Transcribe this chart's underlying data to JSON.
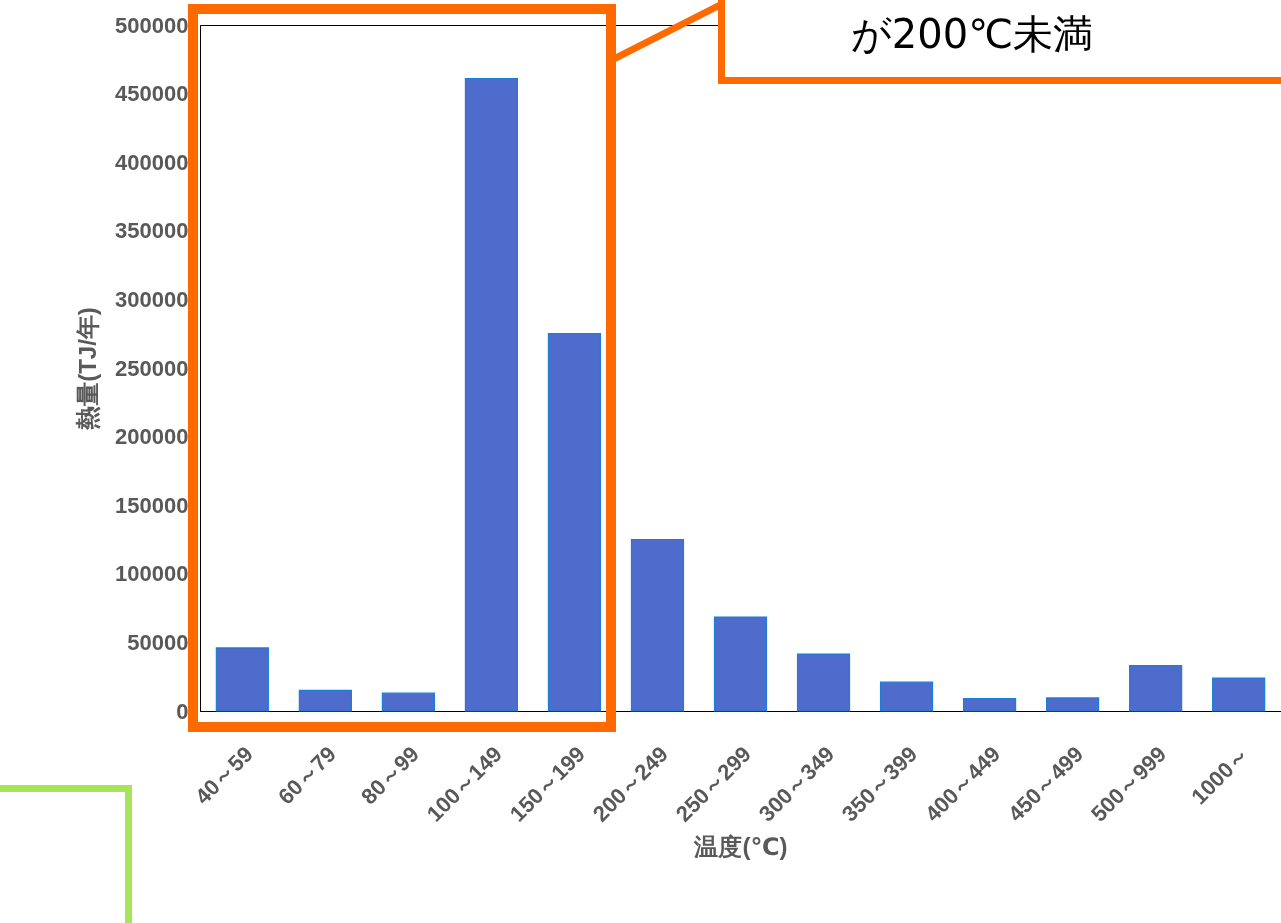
{
  "chart_data": {
    "type": "bar",
    "xlabel": "温度(℃)",
    "ylabel": "熱量(TJ/年)",
    "categories": [
      "40～59",
      "60～79",
      "80～99",
      "100～149",
      "150～199",
      "200～249",
      "250～299",
      "300～349",
      "350～399",
      "400～449",
      "450～499",
      "500～999",
      "1000～"
    ],
    "values": [
      46000,
      15000,
      13000,
      461000,
      275000,
      125000,
      68500,
      41500,
      21000,
      9000,
      9500,
      33000,
      24000
    ],
    "color": "#4f6bcb",
    "ylim": [
      0,
      500000
    ],
    "yticks": [
      0,
      50000,
      100000,
      150000,
      200000,
      250000,
      300000,
      350000,
      400000,
      450000,
      500000
    ],
    "grid": false,
    "annotations": [
      "が200℃未満"
    ]
  }
}
